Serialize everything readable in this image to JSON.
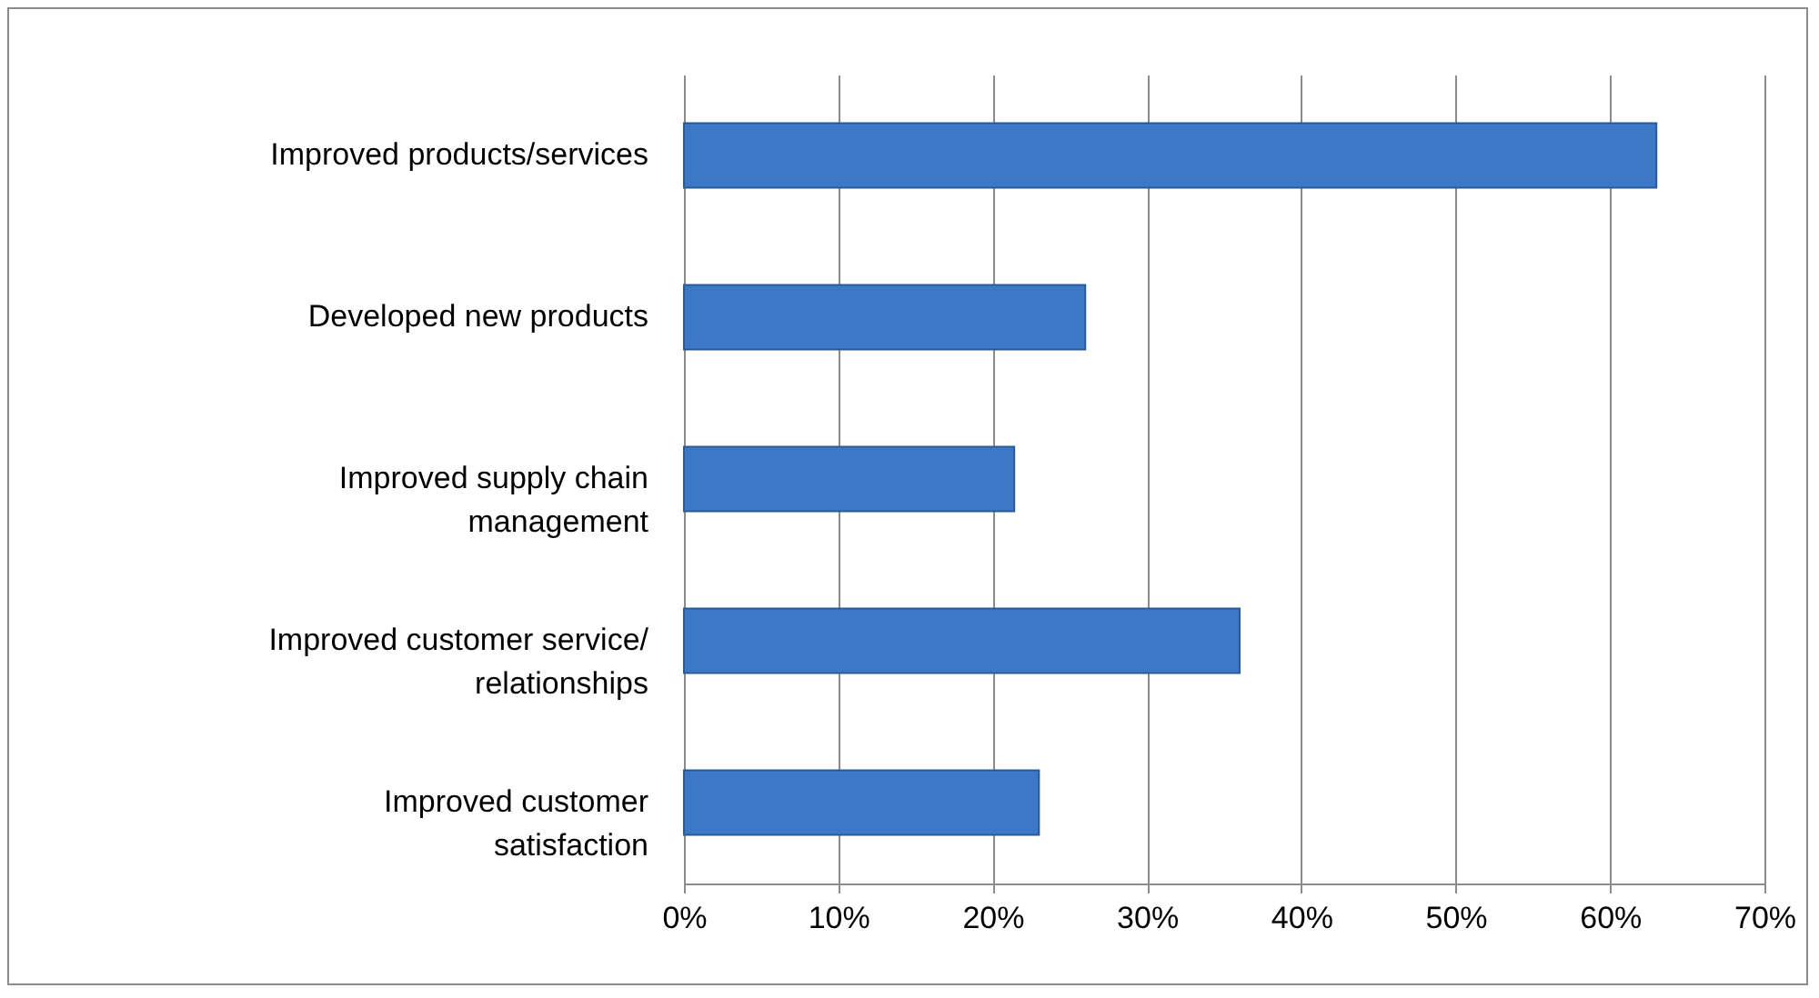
{
  "chart_data": {
    "type": "bar",
    "orientation": "horizontal",
    "categories": [
      "Improved products/services",
      "Developed new products",
      "Improved supply chain management",
      "Improved customer service/ relationships",
      "Improved customer satisfaction"
    ],
    "values": [
      63,
      26,
      21.4,
      36,
      23
    ],
    "color": "#3c78c6",
    "xlim": [
      0,
      70
    ],
    "xticks": [
      {
        "value": 0,
        "label": "0%"
      },
      {
        "value": 10,
        "label": "10%"
      },
      {
        "value": 20,
        "label": "20%"
      },
      {
        "value": 30,
        "label": "30%"
      },
      {
        "value": 40,
        "label": "40%"
      },
      {
        "value": 50,
        "label": "50%"
      },
      {
        "value": 60,
        "label": "60%"
      },
      {
        "value": 70,
        "label": "70%"
      }
    ],
    "grid": "x"
  }
}
